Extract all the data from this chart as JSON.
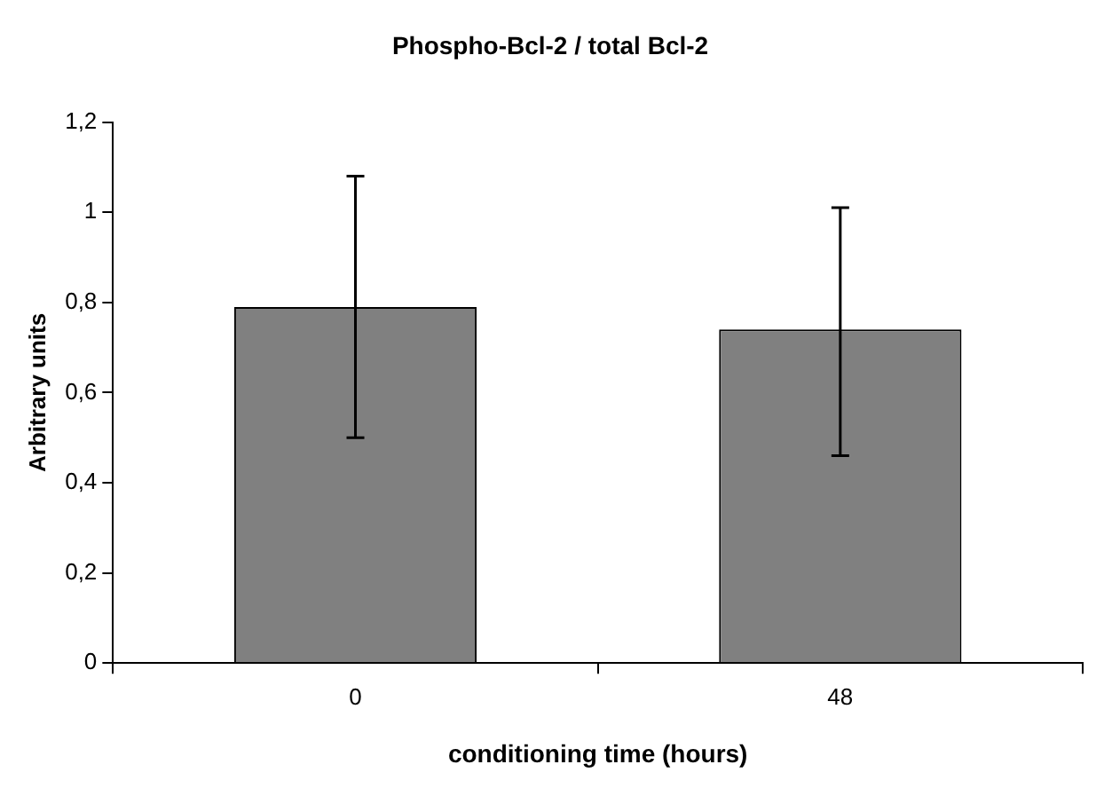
{
  "chart_data": {
    "type": "bar",
    "title": "Phospho-Bcl-2 / total Bcl-2",
    "xlabel": "conditioning time (hours)",
    "ylabel": "Arbitrary units",
    "categories": [
      "0",
      "48"
    ],
    "values": [
      0.79,
      0.74
    ],
    "color": "#808080",
    "errors": [
      [
        0.5,
        1.08
      ],
      [
        0.46,
        1.01
      ]
    ],
    "ylim": [
      0,
      1.2
    ],
    "yticks": [
      0,
      {
        "value": 0.2,
        "label": "0,2"
      },
      {
        "value": 0.4,
        "label": "0,4"
      },
      {
        "value": 0.6,
        "label": "0,6"
      },
      {
        "value": 0.8,
        "label": "0,8"
      },
      1,
      {
        "value": 1.2,
        "label": "1,2"
      }
    ],
    "grid": false,
    "legend": false
  }
}
